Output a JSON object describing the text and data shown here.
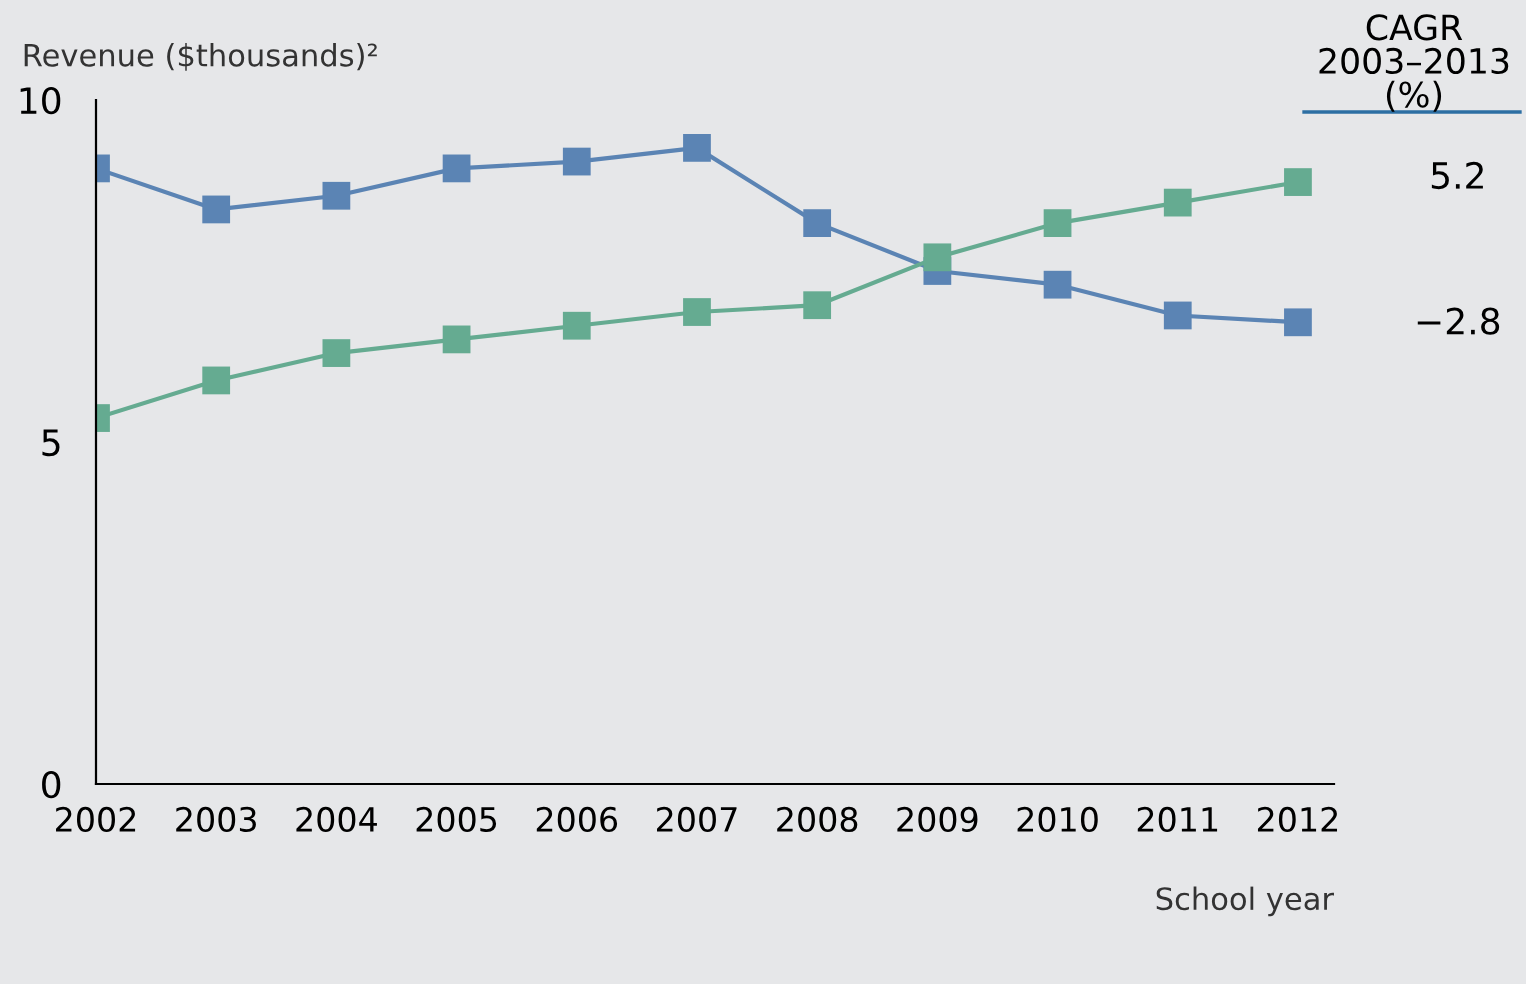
{
  "chart_data": {
    "type": "line",
    "ylabel": "Revenue ($thousands)²",
    "xlabel": "School year",
    "x": [
      2002,
      2003,
      2004,
      2005,
      2006,
      2007,
      2008,
      2009,
      2010,
      2011,
      2012
    ],
    "series": [
      {
        "color": "#5b84b4",
        "values": [
          9.0,
          8.4,
          8.6,
          9.0,
          9.1,
          9.3,
          8.2,
          7.5,
          7.3,
          6.85,
          6.75
        ]
      },
      {
        "color": "#65ab91",
        "values": [
          5.35,
          5.9,
          6.3,
          6.5,
          6.7,
          6.9,
          7.0,
          7.7,
          8.2,
          8.5,
          8.8
        ]
      }
    ],
    "xlim": [
      2002,
      2012.3
    ],
    "xticks": [
      2002,
      2003,
      2004,
      2005,
      2006,
      2007,
      2008,
      2009,
      2010,
      2011,
      2012
    ],
    "ylim": [
      0,
      10
    ],
    "yticks": [
      0,
      5,
      10
    ],
    "annotations": [
      "CAGR\n2003–2013\n(%)",
      "5.2",
      "−2.8"
    ],
    "marker": "square",
    "line_style": "solid",
    "grid": false,
    "legend": false
  }
}
